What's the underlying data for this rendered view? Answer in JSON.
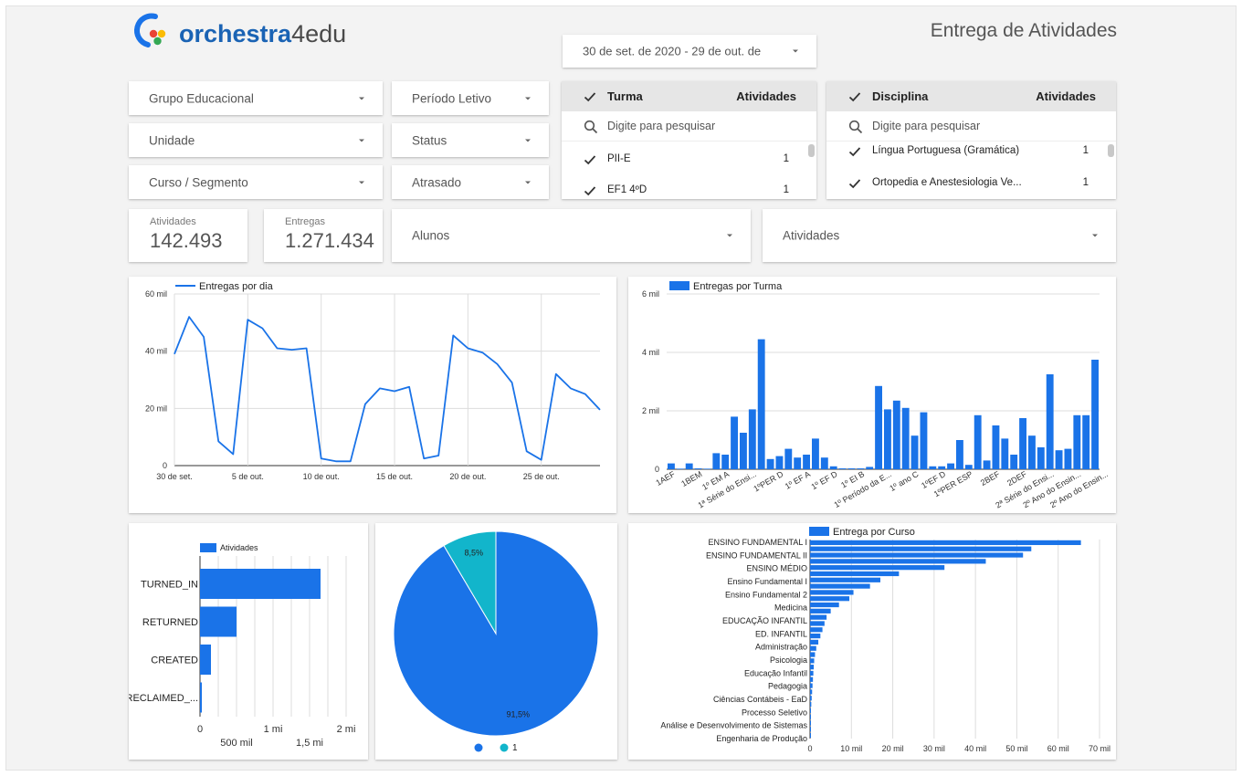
{
  "header": {
    "logo_part1": "orchestra",
    "logo_part2": "4edu",
    "page_title": "Entrega de Atividades",
    "date_range": "30 de set. de 2020 - 29 de out. de"
  },
  "filters": {
    "grupo": "Grupo Educacional",
    "periodo": "Período Letivo",
    "unidade": "Unidade",
    "status": "Status",
    "curso": "Curso / Segmento",
    "atrasado": "Atrasado",
    "alunos": "Alunos",
    "atividades": "Atividades"
  },
  "turma_list": {
    "header": "Turma",
    "header_count": "Atividades",
    "search_placeholder": "Digite para pesquisar",
    "rows": [
      {
        "name": "PII-E",
        "count": "1"
      },
      {
        "name": "EF1 4ºD",
        "count": "1"
      }
    ]
  },
  "disciplina_list": {
    "header": "Disciplina",
    "header_count": "Atividades",
    "search_placeholder": "Digite para pesquisar",
    "rows": [
      {
        "name": "Língua Portuguesa (Gramática)",
        "count": "1"
      },
      {
        "name": "Ortopedia e Anestesiologia Ve...",
        "count": "1"
      }
    ]
  },
  "kpis": {
    "atividades_label": "Atividades",
    "atividades_value": "142.493",
    "entregas_label": "Entregas",
    "entregas_value": "1.271.434"
  },
  "colors": {
    "blue": "#1a73e8",
    "teal": "#12b5cb",
    "logo_blue": "#1a63b4"
  },
  "chart_data": [
    {
      "type": "line",
      "legend": [
        "Entregas por dia"
      ],
      "y_ticks": [
        "0",
        "20 mil",
        "40 mil",
        "60 mil"
      ],
      "ylim": [
        0,
        60000
      ],
      "x_ticks": [
        "30 de set.",
        "5 de out.",
        "10 de out.",
        "15 de out.",
        "20 de out.",
        "25 de out."
      ],
      "x": [
        "2020-09-30",
        "2020-10-01",
        "2020-10-02",
        "2020-10-03",
        "2020-10-04",
        "2020-10-05",
        "2020-10-06",
        "2020-10-07",
        "2020-10-08",
        "2020-10-09",
        "2020-10-10",
        "2020-10-11",
        "2020-10-12",
        "2020-10-13",
        "2020-10-14",
        "2020-10-15",
        "2020-10-16",
        "2020-10-17",
        "2020-10-18",
        "2020-10-19",
        "2020-10-20",
        "2020-10-21",
        "2020-10-22",
        "2020-10-23",
        "2020-10-24",
        "2020-10-25",
        "2020-10-26",
        "2020-10-27",
        "2020-10-28",
        "2020-10-29"
      ],
      "series": [
        {
          "name": "Entregas por dia",
          "values": [
            39000,
            52000,
            45000,
            8500,
            4000,
            51000,
            48000,
            41000,
            40500,
            41000,
            2500,
            1500,
            1500,
            21500,
            27000,
            26000,
            27500,
            2500,
            3500,
            45500,
            41000,
            39500,
            35500,
            29000,
            5000,
            2000,
            32000,
            27000,
            25000,
            19500
          ]
        }
      ]
    },
    {
      "type": "bar",
      "legend": [
        "Entregas por Turma"
      ],
      "y_ticks": [
        "0",
        "2 mil",
        "4 mil",
        "6 mil"
      ],
      "ylim": [
        0,
        6000
      ],
      "x_tick_labels": [
        "1AEF",
        "1BEM",
        "1º EM A",
        "1ª Série do Ensi...",
        "1ºPER D",
        "1º EF A",
        "1º EF D",
        "1º EI B",
        "1º Período da E...",
        "1º ano C",
        "1ºEF D",
        "1ºPER ESP",
        "2BEF",
        "2DEF",
        "2ª Série do Ensi...",
        "2º Ano do Ensin...",
        "2º Ano do Ensin..."
      ],
      "values": [
        200,
        20,
        200,
        30,
        20,
        550,
        500,
        1800,
        1250,
        2050,
        4450,
        350,
        450,
        700,
        400,
        500,
        1050,
        400,
        100,
        30,
        30,
        30,
        80,
        2850,
        2050,
        2350,
        2100,
        1150,
        1950,
        100,
        100,
        200,
        1000,
        150,
        1850,
        300,
        1500,
        1050,
        500,
        1750,
        1150,
        750,
        3250,
        650,
        700,
        1850,
        1850,
        3750
      ]
    },
    {
      "type": "bar",
      "orientation": "horizontal",
      "legend": [
        "Atividades"
      ],
      "categories": [
        "TURNED_IN",
        "RETURNED",
        "CREATED",
        "RECLAIMED_..."
      ],
      "values": [
        1650000,
        500000,
        150000,
        20000
      ],
      "x_ticks_top": [
        "0",
        "1 mi",
        "2 mi"
      ],
      "x_ticks_bottom": [
        "500 mil",
        "1,5 mi"
      ],
      "xlim": [
        0,
        2000000
      ]
    },
    {
      "type": "pie",
      "slices": [
        {
          "label": "91,5%",
          "value": 91.5
        },
        {
          "label": "8,5%",
          "value": 8.5
        }
      ],
      "legend": [
        "",
        "1"
      ]
    },
    {
      "type": "bar",
      "orientation": "horizontal",
      "legend": [
        "Entrega por Curso"
      ],
      "category_labels": [
        "ENSINO FUNDAMENTAL I",
        "ENSINO FUNDAMENTAL II",
        "ENSINO MÉDIO",
        "Ensino Fundamental I",
        "Ensino Fundamental 2",
        "Medicina",
        "EDUCAÇÃO INFANTIL",
        "ED. INFANTIL",
        "Administração",
        "Psicologia",
        "Educação Infantil",
        "Pedagogia",
        "Ciências Contábeis - EaD",
        "Processo Seletivo",
        "Análise e Desenvolvimento de Sistemas",
        "Engenharia de Produção"
      ],
      "values": [
        65500,
        53500,
        51500,
        42500,
        32500,
        21500,
        17000,
        14500,
        10500,
        9500,
        7000,
        5000,
        4000,
        3500,
        3000,
        2500,
        2000,
        1500,
        1200,
        1000,
        900,
        800,
        700,
        600,
        500,
        400,
        300,
        200,
        150,
        100,
        80,
        50
      ],
      "x_ticks": [
        "0",
        "10 mil",
        "20 mil",
        "30 mil",
        "40 mil",
        "50 mil",
        "60 mil",
        "70 mil"
      ],
      "xlim": [
        0,
        70000
      ]
    }
  ]
}
